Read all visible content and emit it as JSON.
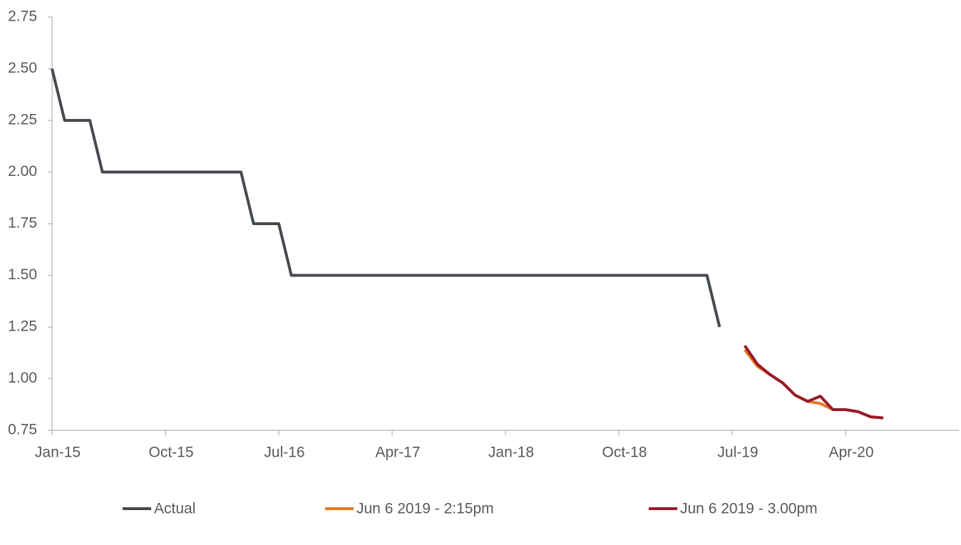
{
  "chart_data": {
    "type": "line",
    "categories": [
      "Jan-15",
      null,
      null,
      null,
      null,
      null,
      null,
      null,
      null,
      "Oct-15",
      null,
      null,
      null,
      null,
      null,
      null,
      null,
      null,
      "Jul-16",
      null,
      null,
      null,
      null,
      null,
      null,
      null,
      null,
      "Apr-17",
      null,
      null,
      null,
      null,
      null,
      null,
      null,
      null,
      "Jan-18",
      null,
      null,
      null,
      null,
      null,
      null,
      null,
      null,
      "Oct-18",
      null,
      null,
      null,
      null,
      null,
      null,
      null,
      null,
      "Jul-19",
      null,
      null,
      null,
      null,
      null,
      null,
      null,
      null,
      "Apr-20",
      null,
      null,
      null,
      null,
      null,
      null,
      null,
      null,
      null
    ],
    "series": [
      {
        "name": "Actual",
        "color": "#444a4f",
        "values": [
          2.5,
          2.25,
          2.25,
          2.25,
          2.0,
          2.0,
          2.0,
          2.0,
          2.0,
          2.0,
          2.0,
          2.0,
          2.0,
          2.0,
          2.0,
          2.0,
          1.75,
          1.75,
          1.75,
          1.5,
          1.5,
          1.5,
          1.5,
          1.5,
          1.5,
          1.5,
          1.5,
          1.5,
          1.5,
          1.5,
          1.5,
          1.5,
          1.5,
          1.5,
          1.5,
          1.5,
          1.5,
          1.5,
          1.5,
          1.5,
          1.5,
          1.5,
          1.5,
          1.5,
          1.5,
          1.5,
          1.5,
          1.5,
          1.5,
          1.5,
          1.5,
          1.5,
          1.5,
          1.25,
          null,
          null,
          null,
          null,
          null,
          null,
          null,
          null,
          null,
          null,
          null,
          null,
          null,
          null,
          null,
          null,
          null,
          null,
          null
        ]
      },
      {
        "name": "Jun 6 2019 - 2:15pm",
        "color": "#e87722",
        "values": [
          null,
          null,
          null,
          null,
          null,
          null,
          null,
          null,
          null,
          null,
          null,
          null,
          null,
          null,
          null,
          null,
          null,
          null,
          null,
          null,
          null,
          null,
          null,
          null,
          null,
          null,
          null,
          null,
          null,
          null,
          null,
          null,
          null,
          null,
          null,
          null,
          null,
          null,
          null,
          null,
          null,
          null,
          null,
          null,
          null,
          null,
          null,
          null,
          null,
          null,
          null,
          null,
          null,
          null,
          null,
          1.14,
          1.06,
          1.02,
          0.98,
          0.92,
          0.89,
          0.88,
          0.85,
          0.85,
          0.84,
          0.815,
          0.81,
          null,
          null,
          null,
          null,
          null,
          null
        ]
      },
      {
        "name": "Jun 6 2019 - 3.00pm",
        "color": "#961b28",
        "values": [
          null,
          null,
          null,
          null,
          null,
          null,
          null,
          null,
          null,
          null,
          null,
          null,
          null,
          null,
          null,
          null,
          null,
          null,
          null,
          null,
          null,
          null,
          null,
          null,
          null,
          null,
          null,
          null,
          null,
          null,
          null,
          null,
          null,
          null,
          null,
          null,
          null,
          null,
          null,
          null,
          null,
          null,
          null,
          null,
          null,
          null,
          null,
          null,
          null,
          null,
          null,
          null,
          null,
          null,
          null,
          1.16,
          1.07,
          1.02,
          0.98,
          0.92,
          0.89,
          0.915,
          0.85,
          0.85,
          0.84,
          0.815,
          0.81,
          null,
          null,
          null,
          null,
          null,
          null
        ]
      }
    ],
    "ylim": [
      0.75,
      2.75
    ],
    "yticks": [
      0.75,
      {
        "value": 1.0,
        "label": "1.00"
      },
      1.25,
      {
        "value": 1.5,
        "label": "1.50"
      },
      1.75,
      {
        "value": 2.0,
        "label": "2.00"
      },
      2.25,
      {
        "value": 2.5,
        "label": "2.50"
      },
      2.75
    ],
    "legend": "bottom"
  }
}
